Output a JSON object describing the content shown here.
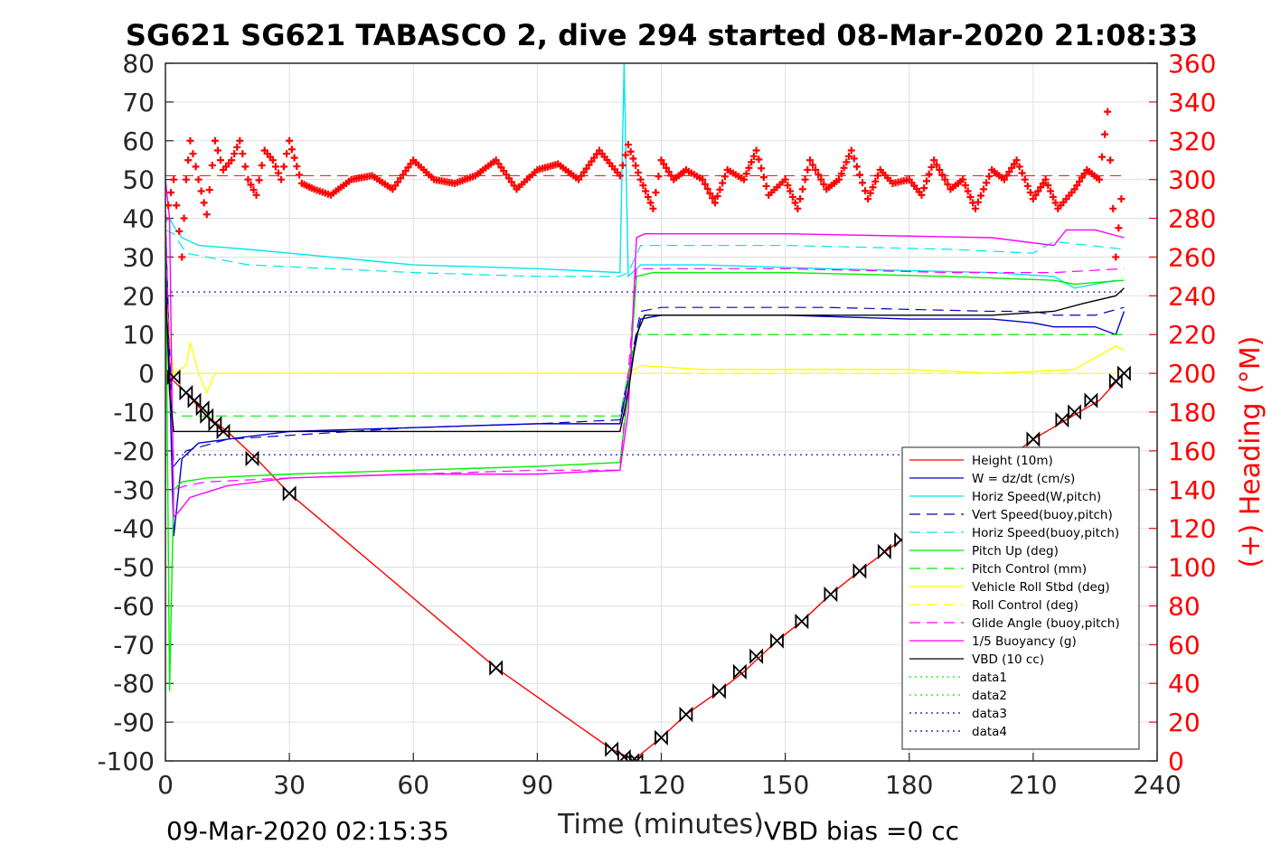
{
  "title": "SG621 SG621 TABASCO 2, dive 294 started 08-Mar-2020 21:08:33",
  "footer_left": "09-Mar-2020 02:15:35",
  "footer_right": "VBD bias =0 cc",
  "chart_data": {
    "type": "line",
    "xlabel": "Time (minutes)",
    "ylabel_right": "(+) Heading (°M)",
    "xlim": [
      0,
      240
    ],
    "ylim": [
      -100,
      80
    ],
    "ylim_right": [
      0,
      360
    ],
    "xticks": [
      0,
      30,
      60,
      90,
      120,
      150,
      180,
      210,
      240
    ],
    "yticks": [
      -100,
      -90,
      -80,
      -70,
      -60,
      -50,
      -40,
      -30,
      -20,
      -10,
      0,
      10,
      20,
      30,
      40,
      50,
      60,
      70,
      80
    ],
    "yticks_right": [
      0,
      20,
      40,
      60,
      80,
      100,
      120,
      140,
      160,
      180,
      200,
      220,
      240,
      260,
      280,
      300,
      320,
      340,
      360
    ],
    "grid": true,
    "legend_position": "lower-right",
    "series": [
      {
        "name": "Height (10m)",
        "color": "#ff0000",
        "style": "solid",
        "x": [
          0,
          1,
          5,
          10,
          15,
          22,
          30,
          80,
          108,
          112,
          113,
          120,
          126,
          134,
          140,
          148,
          154,
          161,
          168,
          178,
          210,
          218,
          226,
          232
        ],
        "y": [
          0,
          -1,
          -5,
          -11,
          -15,
          -22,
          -31,
          -76,
          -97,
          -99,
          -100,
          -94,
          -88,
          -82,
          -77,
          -69,
          -64,
          -57,
          -51,
          -43,
          -17,
          -12,
          -7,
          0
        ]
      },
      {
        "name": "W = dz/dt (cm/s)",
        "color": "#0000cc",
        "style": "solid",
        "x": [
          0,
          2,
          4,
          8,
          15,
          30,
          60,
          90,
          110,
          112,
          115,
          120,
          150,
          180,
          200,
          210,
          215,
          225,
          230,
          232
        ],
        "y": [
          40,
          -42,
          -22,
          -18,
          -17,
          -15,
          -14,
          -13,
          -13,
          -2,
          14,
          15,
          15,
          14,
          14,
          13,
          12,
          12,
          10,
          16
        ]
      },
      {
        "name": "Horiz Speed(W,pitch)",
        "color": "#00e5ee",
        "style": "solid",
        "x": [
          0,
          1,
          2,
          4,
          8,
          20,
          40,
          60,
          90,
          110,
          111,
          112,
          113,
          115,
          130,
          160,
          200,
          215,
          220,
          230
        ],
        "y": [
          39,
          40,
          38,
          35,
          33,
          32,
          30,
          28,
          27,
          26,
          80,
          25,
          26,
          28,
          28,
          27,
          26,
          25,
          22,
          24
        ]
      },
      {
        "name": "Vert Speed(buoy,pitch)",
        "color": "#0000cc",
        "style": "dashed",
        "x": [
          0,
          2,
          5,
          15,
          30,
          60,
          90,
          110,
          112,
          115,
          120,
          160,
          200,
          210,
          215,
          225,
          232
        ],
        "y": [
          38,
          -24,
          -20,
          -17,
          -16,
          -14,
          -13,
          -12,
          0,
          16,
          17,
          17,
          16,
          16,
          15,
          15,
          17
        ]
      },
      {
        "name": "Horiz Speed(buoy,pitch)",
        "color": "#00e5ee",
        "style": "dashed",
        "x": [
          0,
          2,
          5,
          20,
          40,
          60,
          90,
          110,
          112,
          115,
          150,
          190,
          210,
          215,
          232
        ],
        "y": [
          37,
          36,
          31,
          28,
          27,
          26,
          25,
          25,
          26,
          33,
          33,
          32,
          31,
          34,
          32
        ]
      },
      {
        "name": "Pitch Up (deg)",
        "color": "#00ee00",
        "style": "solid",
        "x": [
          0,
          1,
          2,
          4,
          10,
          30,
          60,
          90,
          110,
          112,
          114,
          118,
          150,
          190,
          215,
          220,
          232
        ],
        "y": [
          40,
          -82,
          -30,
          -28,
          -27,
          -26,
          -25,
          -24,
          -23,
          -5,
          25,
          26,
          26,
          25,
          24,
          23,
          24
        ]
      },
      {
        "name": "Pitch Control (mm)",
        "color": "#00ee00",
        "style": "dashed",
        "x": [
          0,
          2,
          4,
          110,
          112,
          114,
          232
        ],
        "y": [
          -10,
          -10,
          -11,
          -11,
          0,
          10,
          10
        ]
      },
      {
        "name": "Vehicle Roll Stbd (deg)",
        "color": "#ffff00",
        "style": "solid",
        "x": [
          0,
          2,
          5,
          6,
          8,
          10,
          12,
          30,
          60,
          80,
          90,
          108,
          110,
          112,
          115,
          130,
          150,
          180,
          200,
          220,
          230,
          232
        ],
        "y": [
          20,
          0,
          2,
          8,
          0,
          -5,
          0,
          0,
          0,
          0,
          0,
          0,
          0,
          0,
          2,
          1,
          1,
          1,
          0,
          1,
          7,
          6
        ]
      },
      {
        "name": "Roll Control (deg)",
        "color": "#ffff00",
        "style": "dashed",
        "x": [
          0,
          232
        ],
        "y": [
          0,
          0
        ]
      },
      {
        "name": "Glide Angle (buoy,pitch)",
        "color": "#ff00ff",
        "style": "dashed",
        "x": [
          0,
          2,
          5,
          10,
          30,
          60,
          90,
          110,
          112,
          114,
          150,
          190,
          215,
          232
        ],
        "y": [
          40,
          -30,
          -29,
          -28,
          -27,
          -26,
          -25,
          -25,
          0,
          27,
          27,
          26,
          26,
          27
        ]
      },
      {
        "name": "1/5 Buoyancy (g)",
        "color": "#ff00ff",
        "style": "solid",
        "x": [
          0,
          1,
          2,
          3,
          6,
          15,
          30,
          60,
          90,
          110,
          112,
          114,
          116,
          150,
          200,
          215,
          218,
          225,
          232
        ],
        "y": [
          50,
          40,
          -37,
          -36,
          -32,
          -29,
          -27,
          -26,
          -26,
          -25,
          -10,
          35,
          36,
          36,
          35,
          33,
          37,
          37,
          35
        ]
      },
      {
        "name": "VBD (10 cc)",
        "color": "#000000",
        "style": "solid",
        "x": [
          0,
          1,
          2,
          110,
          112,
          114,
          116,
          150,
          200,
          215,
          222,
          230,
          232
        ],
        "y": [
          25,
          -5,
          -15,
          -15,
          -5,
          10,
          15,
          15,
          15,
          16,
          18,
          20,
          22
        ]
      },
      {
        "name": "data1",
        "color": "#00ee00",
        "style": "dotted",
        "x": [],
        "y": []
      },
      {
        "name": "data2",
        "color": "#00ee00",
        "style": "dotted",
        "x": [],
        "y": []
      },
      {
        "name": "data3",
        "color": "#0000cc",
        "style": "dotted",
        "x": [
          0,
          232
        ],
        "y": [
          21,
          21
        ]
      },
      {
        "name": "data4",
        "color": "#0000cc",
        "style": "dotted",
        "x": [
          0,
          232
        ],
        "y": [
          -21,
          -21
        ]
      }
    ],
    "heading": {
      "axis": "right",
      "color": "#ff0000",
      "marker": "+",
      "x": [
        0,
        2,
        4,
        5,
        6,
        8,
        10,
        12,
        14,
        16,
        18,
        20,
        22,
        24,
        26,
        28,
        30,
        33,
        36,
        40,
        45,
        50,
        55,
        60,
        65,
        70,
        75,
        80,
        85,
        90,
        95,
        100,
        105,
        110,
        112,
        115,
        118,
        120,
        123,
        126,
        130,
        133,
        136,
        140,
        143,
        146,
        150,
        153,
        156,
        160,
        163,
        166,
        170,
        173,
        176,
        180,
        183,
        186,
        190,
        193,
        196,
        200,
        203,
        206,
        210,
        213,
        216,
        220,
        223,
        226,
        228,
        230,
        232
      ],
      "y": [
        280,
        300,
        260,
        300,
        320,
        300,
        282,
        320,
        305,
        310,
        320,
        300,
        292,
        315,
        310,
        300,
        320,
        298,
        295,
        292,
        300,
        302,
        295,
        310,
        300,
        298,
        302,
        310,
        295,
        305,
        308,
        300,
        315,
        302,
        318,
        300,
        285,
        310,
        300,
        305,
        300,
        288,
        305,
        300,
        315,
        292,
        300,
        285,
        310,
        295,
        300,
        315,
        290,
        305,
        298,
        300,
        292,
        310,
        295,
        300,
        285,
        305,
        300,
        310,
        290,
        300,
        285,
        295,
        305,
        300,
        335,
        260,
        305
      ]
    },
    "level_lines": [
      {
        "color": "#ff0000",
        "style": "dashed",
        "x": [
          0,
          232
        ],
        "axis": "right",
        "y": [
          302,
          302
        ]
      }
    ],
    "markers": {
      "symbol": "bowtie",
      "color": "#000000",
      "x": [
        2,
        5,
        7,
        9,
        10,
        12,
        14,
        21,
        30,
        80,
        108,
        111,
        113,
        114,
        120,
        126,
        134,
        139,
        143,
        148,
        154,
        161,
        168,
        174,
        178,
        210,
        217,
        220,
        224,
        230,
        232
      ],
      "y": [
        -1,
        -5,
        -7,
        -9,
        -11,
        -13,
        -15,
        -22,
        -31,
        -76,
        -97,
        -99,
        -100,
        -100,
        -94,
        -88,
        -82,
        -77,
        -73,
        -69,
        -64,
        -57,
        -51,
        -46,
        -43,
        -17,
        -12,
        -10,
        -7,
        -2,
        0
      ]
    }
  }
}
